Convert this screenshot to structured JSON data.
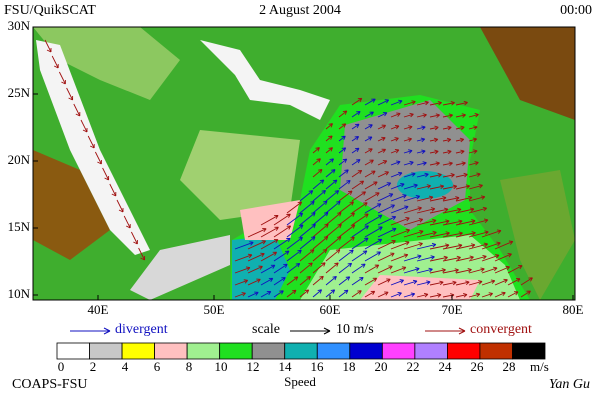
{
  "header": {
    "left": "FSU/QuikSCAT",
    "center": "2 August 2004",
    "right": "00:00"
  },
  "map": {
    "lat_labels": [
      "30N",
      "25N",
      "20N",
      "15N",
      "10N"
    ],
    "lon_labels": [
      "40E",
      "50E",
      "60E",
      "70E",
      "80E"
    ]
  },
  "legend": {
    "divergent": "divergent",
    "scale": "scale",
    "scale_value": "10 m/s",
    "convergent": "convergent"
  },
  "colorbar": {
    "colors": [
      "#ffffff",
      "#c8c8c8",
      "#ffff00",
      "#ffc0c0",
      "#a0f090",
      "#20e020",
      "#909090",
      "#10b0b0",
      "#3090ff",
      "#0000d0",
      "#ff40ff",
      "#b080ff",
      "#ff0000",
      "#c03000",
      "#000000"
    ],
    "labels": [
      "0",
      "2",
      "4",
      "6",
      "8",
      "10",
      "12",
      "14",
      "16",
      "18",
      "20",
      "22",
      "24",
      "26",
      "28"
    ],
    "unit": "m/s",
    "title": "Speed"
  },
  "footer": {
    "left": "COAPS-FSU",
    "right": "Yan Gu"
  }
}
